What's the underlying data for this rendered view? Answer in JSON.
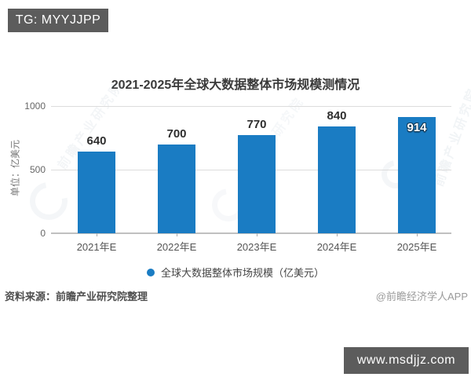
{
  "page": {
    "tg_badge": "TG: MYYJJPP",
    "site_badge": "www.msdjjz.com"
  },
  "chart": {
    "title": "2021-2025年全球大数据整体市场规模测情况",
    "unit_label": "单位：亿美元",
    "legend_label": "全球大数据整体市场规模（亿美元）",
    "source": "资料来源：前瞻产业研究院整理",
    "credit": "@前瞻经济学人APP",
    "watermark": "前瞻产业研究院"
  },
  "colors": {
    "bar": "#1a7cc3",
    "badge_bg": "#5c5c5c",
    "grid": "#dcdcdc"
  },
  "chart_data": {
    "type": "bar",
    "categories": [
      "2021年E",
      "2022年E",
      "2023年E",
      "2024年E",
      "2025年E"
    ],
    "values": [
      640,
      700,
      770,
      840,
      914
    ],
    "title": "2021-2025年全球大数据整体市场规模测情况",
    "xlabel": "",
    "ylabel": "单位：亿美元",
    "ylim": [
      0,
      1000
    ],
    "yticks": [
      0,
      500,
      1000
    ],
    "legend": [
      "全球大数据整体市场规模（亿美元）"
    ],
    "legend_position": "bottom",
    "grid": true,
    "value_labels": true
  }
}
